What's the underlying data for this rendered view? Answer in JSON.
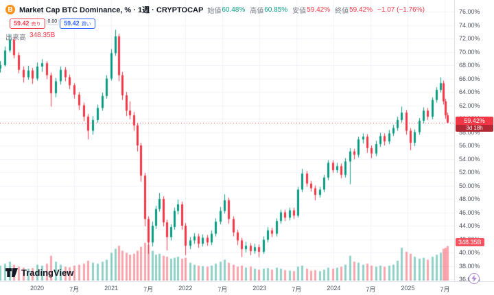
{
  "header": {
    "icon_text": "B",
    "title": "Market Cap BTC Dominance, % · 1週 · CRYPTOCAP",
    "ohlc": {
      "items": [
        {
          "label": "始値",
          "value": "60.48%",
          "color": "#089981"
        },
        {
          "label": "高値",
          "value": "60.85%",
          "color": "#089981"
        },
        {
          "label": "安値",
          "value": "59.42%",
          "color": "#f23645"
        },
        {
          "label": "終値",
          "value": "59.42%",
          "color": "#f23645"
        }
      ],
      "change": {
        "value": "−1.07 (−1.76%)",
        "color": "#f23645"
      }
    }
  },
  "trade_panel": {
    "sell_price": "59.42",
    "sell_label": "売り",
    "sell_color": "#f23645",
    "spread": "0.00",
    "buy_price": "59.42",
    "buy_label": "買い",
    "buy_color": "#2962ff"
  },
  "volume_legend": {
    "label": "出来高",
    "value": "348.35B",
    "value_color": "#f23645"
  },
  "badges": {
    "price": {
      "value": "59.42%",
      "countdown": "3d 18h",
      "bg": "#f23645",
      "countdown_bg": "#b22833"
    },
    "volume": {
      "value": "348.35B",
      "bg": "#f7525f"
    }
  },
  "logo": {
    "text": "TradingView"
  },
  "chart_data": {
    "type": "candlestick_with_volume",
    "title": "Market Cap BTC Dominance, % · 1週 · CRYPTOCAP",
    "symbol": "CRYPTOCAP",
    "interval": "1週",
    "last_price": 59.42,
    "last_volume": "348.35B",
    "y_axis": {
      "min": 36,
      "max": 76,
      "tick_step": 2,
      "unit": "%",
      "labels": [
        "76.00%",
        "74.00%",
        "72.00%",
        "70.00%",
        "68.00%",
        "66.00%",
        "64.00%",
        "62.00%",
        "60.00%",
        "58.00%",
        "56.00%",
        "54.00%",
        "52.00%",
        "50.00%",
        "48.00%",
        "46.00%",
        "44.00%",
        "42.00%",
        "40.00%",
        "38.00%",
        "36.00%"
      ]
    },
    "x_axis": {
      "month_span": 73.5,
      "labels": [
        {
          "label": "2020",
          "month": 6
        },
        {
          "label": "7月",
          "month": 12
        },
        {
          "label": "2021",
          "month": 18
        },
        {
          "label": "7月",
          "month": 24
        },
        {
          "label": "2022",
          "month": 30
        },
        {
          "label": "7月",
          "month": 36
        },
        {
          "label": "2023",
          "month": 42
        },
        {
          "label": "7月",
          "month": 48
        },
        {
          "label": "2024",
          "month": 54
        },
        {
          "label": "7月",
          "month": 60
        },
        {
          "label": "2025",
          "month": 66
        },
        {
          "label": "7月",
          "month": 72
        }
      ]
    },
    "volume_axis_max_B": 400,
    "colors": {
      "up": "#089981",
      "down": "#f23645",
      "vol_up": "rgba(8,153,129,0.45)",
      "vol_down": "rgba(242,54,69,0.45)",
      "grid": "#f0f3fa"
    },
    "candles_format": [
      "month_index",
      "open",
      "high",
      "low",
      "close",
      "volume_B"
    ],
    "candles": [
      [
        0,
        67.5,
        68.6,
        66.9,
        68.0,
        150
      ],
      [
        0.75,
        68.0,
        70.8,
        67.8,
        70.2,
        170
      ],
      [
        1.5,
        70.2,
        72.6,
        69.9,
        71.8,
        190
      ],
      [
        2.25,
        71.8,
        72.2,
        69.0,
        69.5,
        160
      ],
      [
        3,
        69.5,
        69.9,
        66.8,
        67.3,
        140
      ],
      [
        3.75,
        67.3,
        67.8,
        65.4,
        66.2,
        130
      ],
      [
        4.5,
        66.2,
        67.9,
        65.8,
        67.2,
        120
      ],
      [
        5.25,
        67.2,
        67.6,
        65.2,
        66.0,
        125
      ],
      [
        6,
        66.0,
        68.4,
        65.7,
        67.8,
        160
      ],
      [
        6.75,
        67.8,
        68.9,
        67.0,
        68.3,
        150
      ],
      [
        7.5,
        68.3,
        68.6,
        65.9,
        66.5,
        170
      ],
      [
        8.25,
        66.5,
        66.9,
        61.8,
        63.8,
        250
      ],
      [
        9,
        63.8,
        66.1,
        63.2,
        65.6,
        190
      ],
      [
        9.75,
        65.6,
        67.8,
        65.1,
        67.3,
        160
      ],
      [
        10.5,
        67.3,
        67.7,
        65.6,
        66.2,
        140
      ],
      [
        11.25,
        66.2,
        66.6,
        64.4,
        65.0,
        135
      ],
      [
        12,
        65.0,
        65.3,
        63.0,
        63.6,
        150
      ],
      [
        12.75,
        63.6,
        64.0,
        61.3,
        62.0,
        160
      ],
      [
        13.5,
        62.0,
        62.4,
        59.6,
        60.3,
        170
      ],
      [
        14.25,
        60.3,
        60.7,
        56.9,
        58.2,
        200
      ],
      [
        15,
        58.2,
        60.4,
        57.6,
        59.8,
        180
      ],
      [
        15.75,
        59.8,
        62.1,
        59.4,
        61.6,
        170
      ],
      [
        16.5,
        61.6,
        63.9,
        61.2,
        63.4,
        190
      ],
      [
        17.25,
        63.4,
        66.5,
        63.0,
        66.0,
        210
      ],
      [
        18,
        66.0,
        70.4,
        65.7,
        69.8,
        280
      ],
      [
        18.6,
        69.8,
        73.3,
        69.4,
        72.3,
        320
      ],
      [
        19.2,
        72.3,
        72.7,
        65.6,
        66.5,
        350
      ],
      [
        19.8,
        66.5,
        67.0,
        62.8,
        63.5,
        300
      ],
      [
        20.4,
        63.5,
        64.0,
        60.4,
        61.2,
        280
      ],
      [
        21,
        61.2,
        62.6,
        59.9,
        60.5,
        260
      ],
      [
        21.6,
        60.5,
        61.0,
        58.2,
        59.0,
        270
      ],
      [
        22.2,
        59.0,
        59.4,
        55.1,
        56.0,
        300
      ],
      [
        22.8,
        56.0,
        56.4,
        50.6,
        51.5,
        340
      ],
      [
        23.4,
        51.5,
        51.9,
        43.9,
        45.0,
        380
      ],
      [
        24,
        45.0,
        45.4,
        39.8,
        41.5,
        360
      ],
      [
        24.6,
        41.5,
        44.6,
        40.9,
        44.0,
        300
      ],
      [
        25.2,
        44.0,
        47.0,
        43.5,
        46.5,
        260
      ],
      [
        25.8,
        46.5,
        48.9,
        46.1,
        48.0,
        270
      ],
      [
        26.4,
        48.0,
        48.4,
        43.9,
        44.5,
        250
      ],
      [
        27,
        44.5,
        44.9,
        40.3,
        42.3,
        240
      ],
      [
        27.6,
        42.3,
        44.2,
        41.8,
        43.8,
        220
      ],
      [
        28.2,
        43.8,
        46.7,
        43.4,
        46.2,
        230
      ],
      [
        28.8,
        46.2,
        47.9,
        45.7,
        47.2,
        240
      ],
      [
        29.4,
        47.2,
        47.6,
        43.4,
        44.0,
        220
      ],
      [
        30,
        44.0,
        44.4,
        39.6,
        41.0,
        230
      ],
      [
        30.7,
        41.0,
        42.3,
        40.5,
        41.8,
        180
      ],
      [
        31.4,
        41.8,
        42.9,
        41.3,
        42.4,
        160
      ],
      [
        32.1,
        42.4,
        42.8,
        40.7,
        41.3,
        150
      ],
      [
        32.8,
        41.3,
        42.7,
        40.9,
        42.2,
        145
      ],
      [
        33.5,
        42.2,
        42.6,
        41.0,
        41.5,
        140
      ],
      [
        34.2,
        41.5,
        43.3,
        41.1,
        42.8,
        150
      ],
      [
        34.9,
        42.8,
        45.1,
        42.4,
        44.6,
        170
      ],
      [
        35.6,
        44.6,
        46.8,
        44.2,
        46.2,
        190
      ],
      [
        36.3,
        46.2,
        48.7,
        45.8,
        47.8,
        210
      ],
      [
        37,
        47.8,
        48.2,
        44.3,
        45.0,
        180
      ],
      [
        37.7,
        45.0,
        45.4,
        42.4,
        43.0,
        160
      ],
      [
        38.4,
        43.0,
        43.4,
        41.1,
        41.8,
        140
      ],
      [
        39.1,
        41.8,
        42.2,
        39.3,
        40.5,
        150
      ],
      [
        39.8,
        40.5,
        41.6,
        40.0,
        41.0,
        130
      ],
      [
        40.5,
        41.0,
        41.4,
        39.6,
        40.2,
        140
      ],
      [
        41.2,
        40.2,
        41.3,
        39.8,
        40.8,
        120
      ],
      [
        41.9,
        40.8,
        41.2,
        39.3,
        40.1,
        110
      ],
      [
        42.6,
        40.1,
        42.4,
        39.8,
        41.9,
        120
      ],
      [
        43.3,
        41.9,
        43.8,
        41.5,
        43.3,
        125
      ],
      [
        44,
        43.3,
        43.7,
        42.3,
        42.8,
        110
      ],
      [
        44.7,
        42.8,
        45.1,
        42.4,
        44.7,
        130
      ],
      [
        45.4,
        44.7,
        46.4,
        44.3,
        46.0,
        120
      ],
      [
        46.1,
        46.0,
        46.4,
        44.7,
        45.2,
        105
      ],
      [
        46.8,
        45.2,
        46.7,
        44.8,
        46.3,
        100
      ],
      [
        47.5,
        46.3,
        46.7,
        45.0,
        45.5,
        95
      ],
      [
        48.2,
        45.5,
        49.8,
        45.2,
        49.4,
        140
      ],
      [
        48.9,
        49.4,
        52.5,
        49.0,
        51.8,
        150
      ],
      [
        49.6,
        51.8,
        52.2,
        49.8,
        50.3,
        120
      ],
      [
        50.3,
        50.3,
        50.7,
        49.1,
        49.6,
        100
      ],
      [
        51,
        49.6,
        50.0,
        47.8,
        48.6,
        105
      ],
      [
        51.7,
        48.6,
        49.8,
        48.2,
        49.4,
        95
      ],
      [
        52.4,
        49.4,
        51.6,
        49.0,
        51.2,
        110
      ],
      [
        53.1,
        51.2,
        53.8,
        50.8,
        53.4,
        130
      ],
      [
        53.8,
        53.4,
        53.8,
        51.9,
        52.3,
        120
      ],
      [
        54.5,
        52.3,
        53.4,
        51.9,
        52.9,
        130
      ],
      [
        55.2,
        52.9,
        53.3,
        51.1,
        51.6,
        140
      ],
      [
        55.9,
        51.6,
        54.1,
        51.2,
        53.6,
        160
      ],
      [
        56.6,
        53.6,
        55.6,
        50.2,
        55.1,
        250
      ],
      [
        57.3,
        55.1,
        55.5,
        53.9,
        54.6,
        190
      ],
      [
        58,
        54.6,
        57.3,
        54.2,
        56.9,
        180
      ],
      [
        58.7,
        56.9,
        57.8,
        56.3,
        57.3,
        160
      ],
      [
        59.4,
        57.3,
        57.7,
        54.9,
        55.6,
        170
      ],
      [
        60.1,
        55.6,
        56.0,
        54.1,
        54.8,
        150
      ],
      [
        60.8,
        54.8,
        56.7,
        54.4,
        56.2,
        140
      ],
      [
        61.5,
        56.2,
        57.9,
        55.8,
        57.4,
        150
      ],
      [
        62.2,
        57.4,
        57.8,
        56.0,
        56.6,
        140
      ],
      [
        62.9,
        56.6,
        58.3,
        56.2,
        57.8,
        150
      ],
      [
        63.6,
        57.8,
        59.1,
        57.4,
        58.6,
        160
      ],
      [
        64.3,
        58.6,
        60.3,
        58.2,
        59.8,
        200
      ],
      [
        65,
        59.8,
        61.8,
        59.4,
        60.9,
        330
      ],
      [
        65.7,
        60.9,
        61.3,
        57.6,
        58.2,
        290
      ],
      [
        66.4,
        58.2,
        58.6,
        55.3,
        56.4,
        270
      ],
      [
        67.1,
        56.4,
        58.4,
        55.9,
        58.0,
        240
      ],
      [
        67.8,
        58.0,
        60.1,
        57.6,
        59.7,
        220
      ],
      [
        68.5,
        59.7,
        61.7,
        59.3,
        61.2,
        230
      ],
      [
        69.2,
        61.2,
        61.6,
        59.8,
        60.3,
        210
      ],
      [
        69.9,
        60.3,
        63.2,
        59.9,
        62.8,
        240
      ],
      [
        70.6,
        62.8,
        64.7,
        62.4,
        64.3,
        260
      ],
      [
        71.3,
        64.3,
        66.2,
        63.9,
        65.3,
        280
      ],
      [
        71.7,
        65.3,
        65.7,
        62.1,
        62.6,
        320
      ],
      [
        72.1,
        62.6,
        63.0,
        60.0,
        60.5,
        330
      ],
      [
        72.4,
        60.5,
        60.9,
        59.4,
        59.4,
        348
      ]
    ]
  }
}
